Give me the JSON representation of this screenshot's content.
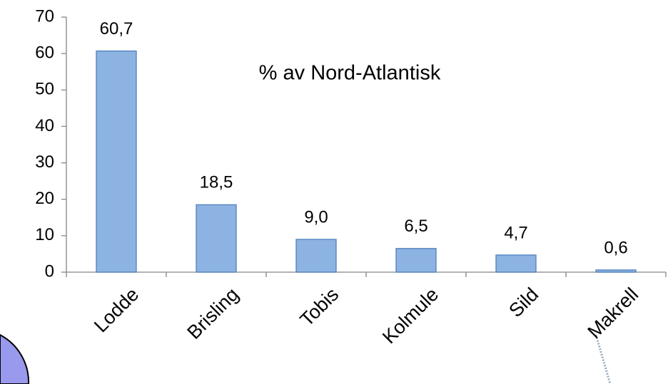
{
  "chart_data": {
    "type": "bar",
    "title": "% av Nord-Atlantisk",
    "categories": [
      "Lodde",
      "Brisling",
      "Tobis",
      "Kolmule",
      "Sild",
      "Makrell"
    ],
    "values": [
      60.7,
      18.5,
      9.0,
      6.5,
      4.7,
      0.6
    ],
    "value_labels": [
      "60,7",
      "18,5",
      "9,0",
      "6,5",
      "4,7",
      "0,6"
    ],
    "color": "#8db3e2",
    "ylim": [
      0,
      70
    ],
    "yticks": [
      0,
      10,
      20,
      30,
      40,
      50,
      60,
      70
    ],
    "grid": false
  }
}
